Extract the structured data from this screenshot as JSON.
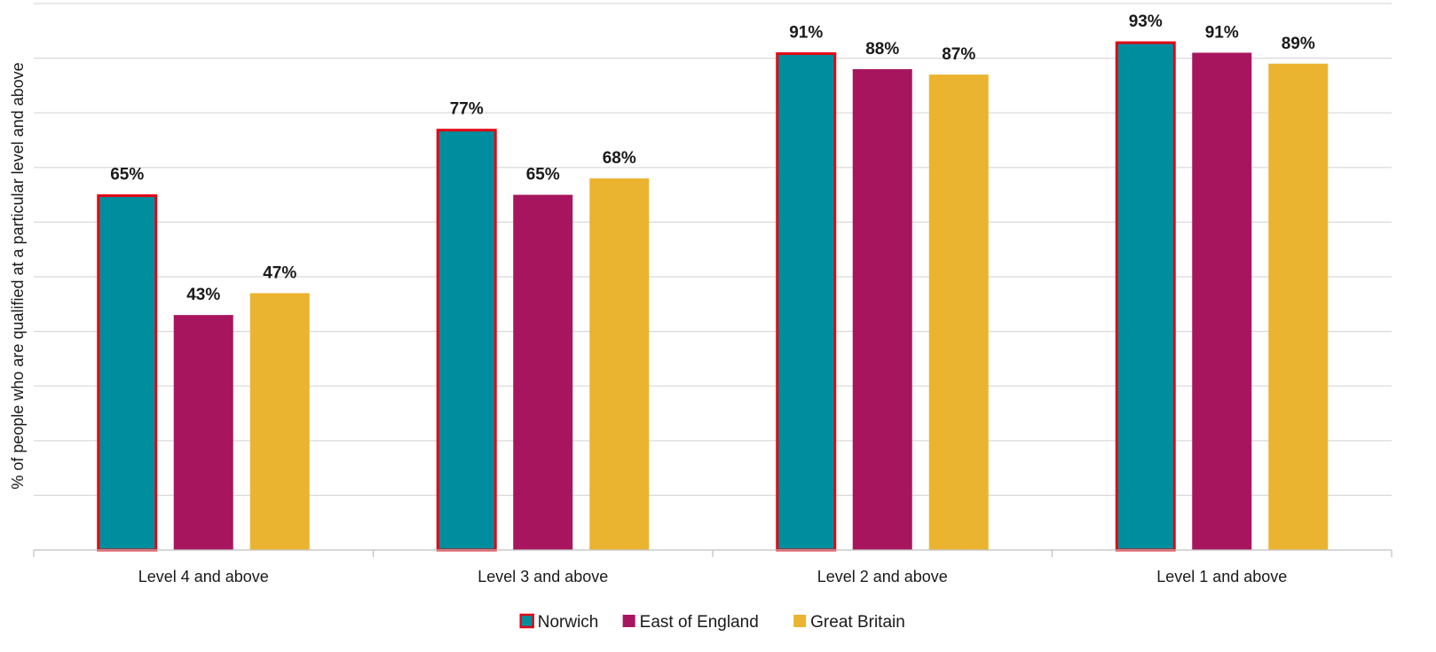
{
  "chart_data": {
    "type": "bar",
    "title": "",
    "xlabel": "",
    "ylabel": "% of people who are qualified at a particular level and above",
    "ylim": [
      0,
      100
    ],
    "grid": true,
    "legend_position": "bottom",
    "value_suffix": "%",
    "categories": [
      "Level 4 and above",
      "Level 3 and above",
      "Level 2 and above",
      "Level 1 and above"
    ],
    "series": [
      {
        "name": "Norwich",
        "color": "#008e9e",
        "highlight_border": "#e30613",
        "values": [
          65,
          77,
          91,
          93
        ]
      },
      {
        "name": "East of England",
        "color": "#a8155f",
        "values": [
          43,
          65,
          88,
          91
        ]
      },
      {
        "name": "Great Britain",
        "color": "#ebb430",
        "values": [
          47,
          68,
          87,
          89
        ]
      }
    ]
  }
}
